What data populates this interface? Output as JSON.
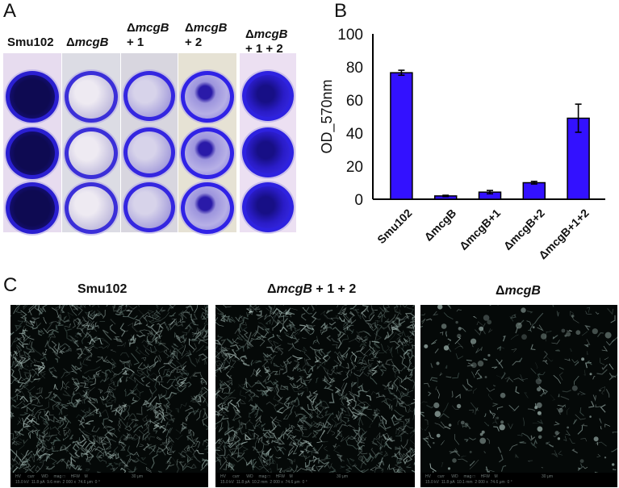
{
  "panelA": {
    "letter": "A",
    "labels": [
      {
        "prefix": "",
        "italic": "",
        "text": "Smu102",
        "suffix": ""
      },
      {
        "prefix": "Δ",
        "italic": "mcgB",
        "suffix": ""
      },
      {
        "prefix": "Δ",
        "italic": "mcgB",
        "suffix": "+ 1"
      },
      {
        "prefix": "Δ",
        "italic": "mcgB",
        "suffix": "+ 2"
      },
      {
        "prefix": "Δ",
        "italic": "mcgB",
        "suffix": "+ 1 + 2"
      }
    ],
    "description": "Crystal violet stained biofilm wells, 3 replicates per strain",
    "colors": {
      "stain_dark": "#15106b",
      "stain_mid": "#3a2ce0",
      "stain_light": "#b9b2e6",
      "plate_bg": "#e9dff0"
    }
  },
  "panelB": {
    "letter": "B"
  },
  "chart_data": {
    "type": "bar",
    "title": "",
    "xlabel": "",
    "ylabel": "OD_570nm",
    "categories": [
      "Smu102",
      "ΔmcgB",
      "ΔmcgB+1",
      "ΔmcgB+2",
      "ΔmcgB+1+2"
    ],
    "values": [
      76.5,
      2.0,
      4.3,
      10.0,
      49.0
    ],
    "errors": [
      1.5,
      0.4,
      1.0,
      0.8,
      8.5
    ],
    "ylim": [
      0,
      100
    ],
    "yticks": [
      0,
      20,
      40,
      60,
      80,
      100
    ],
    "bar_color": "#3311ff",
    "bar_edge": "#000000",
    "grid": false,
    "legend": null,
    "xtick_rotation": -45
  },
  "panelC": {
    "letter": "C",
    "images": [
      {
        "label_prefix": "",
        "label_italic": "",
        "label_text": "Smu102",
        "label_suffix": "",
        "density": "dense",
        "info_header": "HV      curr      WD     mag □     HFW    M",
        "scale": "30 μm",
        "info_values": "15.0 kV  11.8 pA  9.6 mm  2 000 x  74.6 μm  0 °"
      },
      {
        "label_prefix": "Δ",
        "label_italic": "mcgB",
        "label_text": "",
        "label_suffix": " + 1 + 2",
        "density": "dense",
        "info_header": "HV      curr      WD     mag □     HFW    M",
        "scale": "30 μm",
        "info_values": "15.0 kV  11.8 pA  10.2 mm  2 000 x  74.6 μm  0 °"
      },
      {
        "label_prefix": "Δ",
        "label_italic": "mcgB",
        "label_text": "",
        "label_suffix": "",
        "density": "sparse",
        "info_header": "HV      curr      WD     mag □     HFW    M",
        "scale": "30 μm",
        "info_values": "15.0 kV  11.8 pA  10.1 mm  2 000 x  74.6 μm  0 °"
      }
    ]
  }
}
